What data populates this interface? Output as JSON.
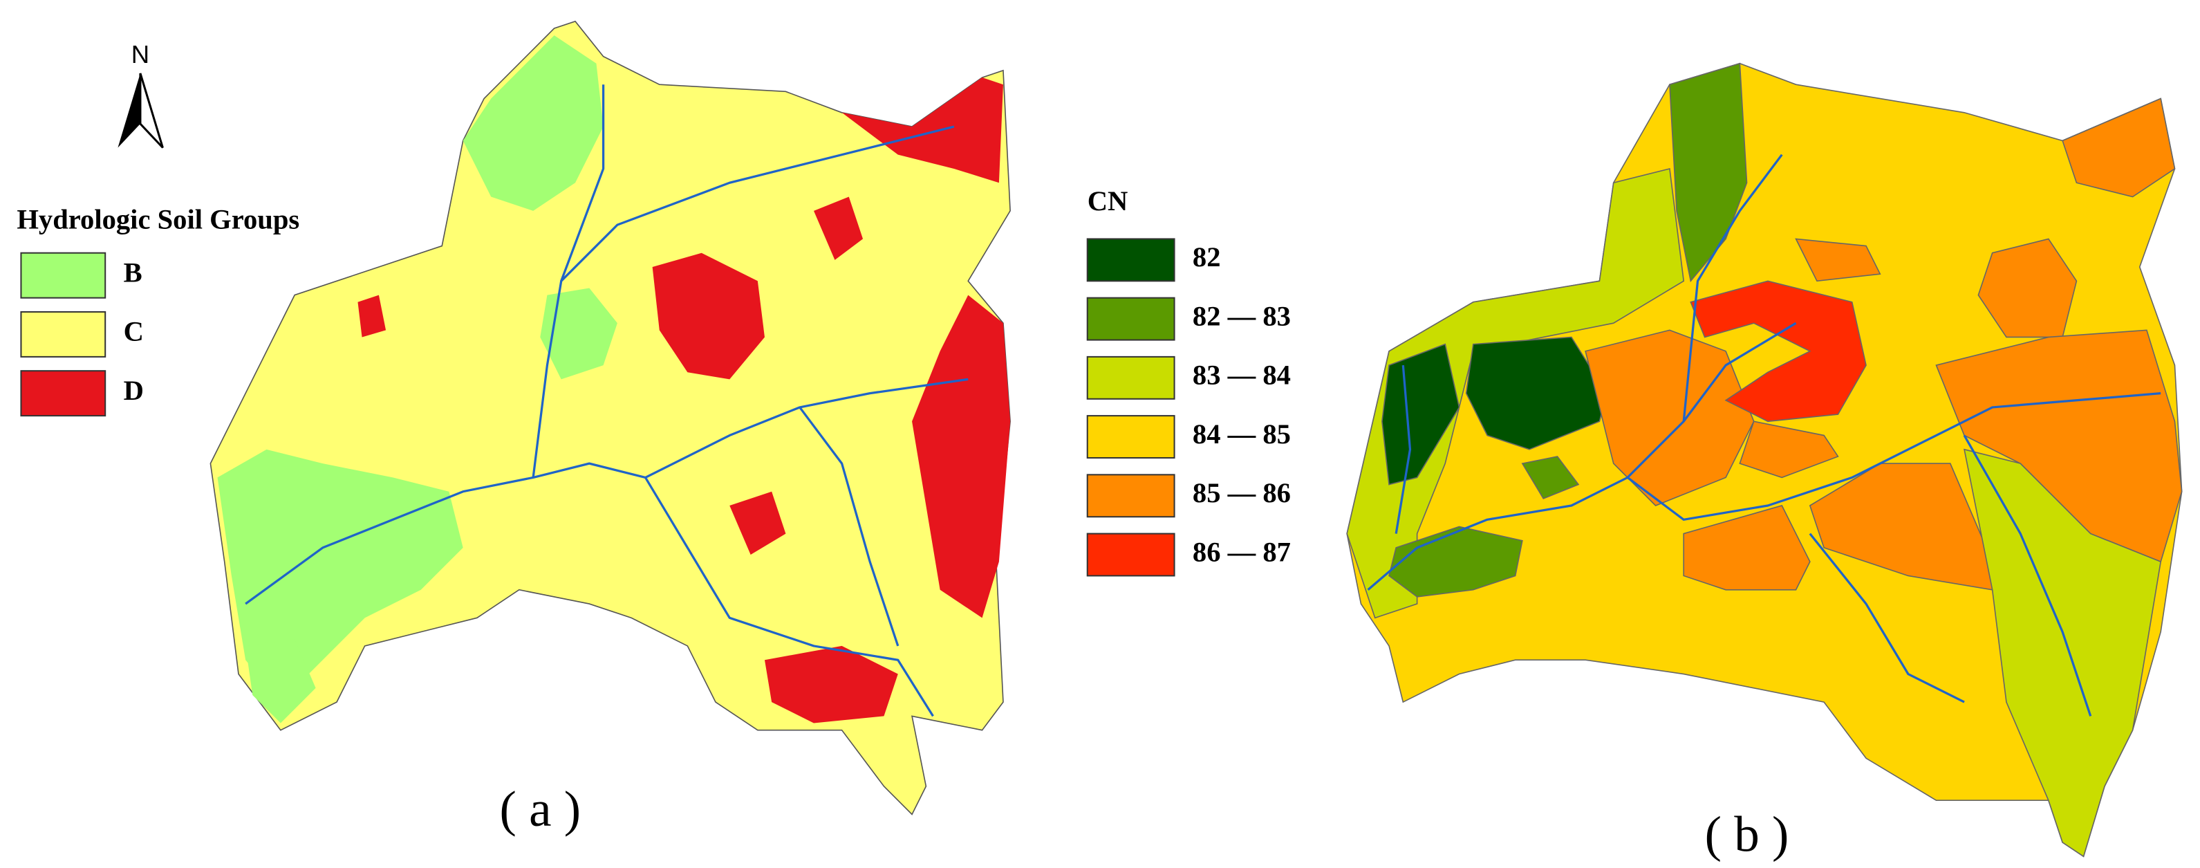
{
  "panel_a": {
    "north_label": "N",
    "legend": {
      "title": "Hydrologic Soil Groups",
      "items": [
        {
          "label": "B",
          "color": "#a3ff73"
        },
        {
          "label": "C",
          "color": "#ffff73"
        },
        {
          "label": "D",
          "color": "#e6151d"
        }
      ]
    },
    "caption": "( a )"
  },
  "panel_b": {
    "legend": {
      "title": "CN",
      "items": [
        {
          "label": "82",
          "color": "#005200"
        },
        {
          "label": "82 — 83",
          "color": "#5b9a00"
        },
        {
          "label": "83 — 84",
          "color": "#c9dd00"
        },
        {
          "label": "84 — 85",
          "color": "#ffd500"
        },
        {
          "label": "85 — 86",
          "color": "#ff8a00"
        },
        {
          "label": "86 — 87",
          "color": "#ff2a00"
        }
      ]
    },
    "caption": "( b )"
  }
}
